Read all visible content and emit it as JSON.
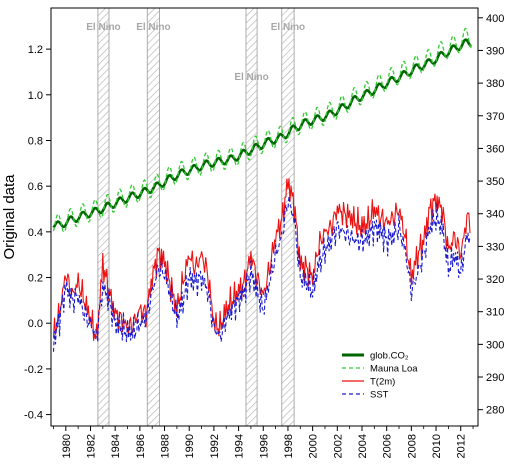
{
  "chart_data": {
    "type": "line",
    "title": "",
    "xlabel": "",
    "ylabel": "Original data",
    "xlim": [
      1978.8,
      2013.4
    ],
    "ylim": [
      -0.45,
      1.38
    ],
    "y2lim": [
      275,
      403
    ],
    "x_ticks": [
      1980,
      1982,
      1984,
      1986,
      1988,
      1990,
      1992,
      1994,
      1996,
      1998,
      2000,
      2002,
      2004,
      2006,
      2008,
      2010,
      2012
    ],
    "y_ticks": [
      -0.4,
      -0.2,
      0.0,
      0.2,
      0.4,
      0.6,
      0.8,
      1.0,
      1.2
    ],
    "y2_ticks": [
      280,
      290,
      300,
      310,
      320,
      330,
      340,
      350,
      360,
      370,
      380,
      390,
      400
    ],
    "grid": false,
    "legend_position": "bottom-right",
    "el_nino": {
      "label": "El Nino",
      "periods": [
        [
          1982.6,
          1983.5
        ],
        [
          1986.6,
          1987.6
        ],
        [
          1994.6,
          1995.5
        ],
        [
          1997.5,
          1998.5
        ]
      ]
    },
    "series": [
      {
        "name": "glob.CO₂",
        "axis": "right",
        "color": "#006400",
        "dash": "solid",
        "width": 2.6,
        "x": [
          1979.5,
          1980.5,
          1981.5,
          1982.5,
          1983.5,
          1984.5,
          1985.5,
          1986.5,
          1987.5,
          1988.5,
          1989.5,
          1990.5,
          1991.5,
          1992.5,
          1993.5,
          1994.5,
          1995.5,
          1996.5,
          1997.5,
          1998.5,
          1999.5,
          2000.5,
          2001.5,
          2002.5,
          2003.5,
          2004.5,
          2005.5,
          2006.5,
          2007.5,
          2008.5,
          2009.5,
          2010.5,
          2011.5,
          2012.5
        ],
        "values": [
          336.5,
          338.2,
          339.6,
          340.8,
          342.4,
          344.0,
          345.5,
          346.9,
          348.6,
          350.9,
          352.6,
          353.9,
          355.3,
          356.0,
          356.8,
          358.6,
          360.4,
          362.2,
          363.4,
          366.1,
          368.0,
          369.1,
          370.6,
          372.6,
          375.1,
          376.9,
          378.9,
          380.9,
          382.7,
          384.8,
          386.3,
          388.6,
          390.6,
          392.4
        ],
        "seasonal_amplitude": 1.1
      },
      {
        "name": "Mauna Loa",
        "axis": "right",
        "color": "#33cc33",
        "dash": "dash",
        "width": 1.3,
        "x": [
          1979.5,
          1980.5,
          1981.5,
          1982.5,
          1983.5,
          1984.5,
          1985.5,
          1986.5,
          1987.5,
          1988.5,
          1989.5,
          1990.5,
          1991.5,
          1992.5,
          1993.5,
          1994.5,
          1995.5,
          1996.5,
          1997.5,
          1998.5,
          1999.5,
          2000.5,
          2001.5,
          2002.5,
          2003.5,
          2004.5,
          2005.5,
          2006.5,
          2007.5,
          2008.5,
          2009.5,
          2010.5,
          2011.5,
          2012.5
        ],
        "values": [
          336.8,
          338.7,
          340.1,
          341.4,
          343.0,
          344.6,
          346.0,
          347.4,
          349.2,
          351.6,
          353.1,
          354.4,
          355.7,
          356.4,
          357.2,
          358.9,
          360.9,
          362.7,
          363.8,
          366.7,
          368.4,
          369.6,
          371.2,
          373.3,
          375.8,
          377.6,
          379.8,
          381.9,
          383.8,
          385.6,
          387.4,
          389.9,
          391.6,
          393.9
        ],
        "seasonal_amplitude": 3.1
      },
      {
        "name": "T(2m)",
        "axis": "left",
        "color": "#ee1111",
        "dash": "solid",
        "width": 1.1,
        "x": [
          1979.0,
          1979.5,
          1980.0,
          1980.5,
          1981.0,
          1981.5,
          1982.0,
          1982.5,
          1983.0,
          1983.5,
          1984.0,
          1984.5,
          1985.0,
          1985.5,
          1986.0,
          1986.5,
          1987.0,
          1987.5,
          1988.0,
          1988.5,
          1989.0,
          1989.5,
          1990.0,
          1990.5,
          1991.0,
          1991.5,
          1992.0,
          1992.5,
          1993.0,
          1993.5,
          1994.0,
          1994.5,
          1995.0,
          1995.5,
          1996.0,
          1996.5,
          1997.0,
          1997.5,
          1998.0,
          1998.5,
          1999.0,
          1999.5,
          2000.0,
          2000.5,
          2001.0,
          2001.5,
          2002.0,
          2002.5,
          2003.0,
          2003.5,
          2004.0,
          2004.5,
          2005.0,
          2005.5,
          2006.0,
          2006.5,
          2007.0,
          2007.5,
          2008.0,
          2008.5,
          2009.0,
          2009.5,
          2010.0,
          2010.5,
          2011.0,
          2011.5,
          2012.0,
          2012.5
        ],
        "values": [
          -0.05,
          0.05,
          0.22,
          0.12,
          0.18,
          0.1,
          0.02,
          -0.07,
          0.26,
          0.14,
          0.04,
          0.02,
          -0.02,
          0.0,
          0.06,
          0.04,
          0.2,
          0.31,
          0.27,
          0.16,
          0.06,
          0.18,
          0.3,
          0.24,
          0.3,
          0.22,
          0.0,
          -0.02,
          0.06,
          0.1,
          0.14,
          0.18,
          0.3,
          0.2,
          0.12,
          0.24,
          0.38,
          0.45,
          0.62,
          0.52,
          0.26,
          0.24,
          0.2,
          0.34,
          0.4,
          0.42,
          0.5,
          0.48,
          0.47,
          0.44,
          0.42,
          0.44,
          0.5,
          0.46,
          0.44,
          0.46,
          0.5,
          0.38,
          0.2,
          0.3,
          0.36,
          0.5,
          0.54,
          0.5,
          0.32,
          0.38,
          0.3,
          0.46
        ]
      },
      {
        "name": "SST",
        "axis": "left",
        "color": "#1a1acc",
        "dash": "dash",
        "width": 1.1,
        "x": [
          1979.0,
          1979.5,
          1980.0,
          1980.5,
          1981.0,
          1981.5,
          1982.0,
          1982.5,
          1983.0,
          1983.5,
          1984.0,
          1984.5,
          1985.0,
          1985.5,
          1986.0,
          1986.5,
          1987.0,
          1987.5,
          1988.0,
          1988.5,
          1989.0,
          1989.5,
          1990.0,
          1990.5,
          1991.0,
          1991.5,
          1992.0,
          1992.5,
          1993.0,
          1993.5,
          1994.0,
          1994.5,
          1995.0,
          1995.5,
          1996.0,
          1996.5,
          1997.0,
          1997.5,
          1998.0,
          1998.5,
          1999.0,
          1999.5,
          2000.0,
          2000.5,
          2001.0,
          2001.5,
          2002.0,
          2002.5,
          2003.0,
          2003.5,
          2004.0,
          2004.5,
          2005.0,
          2005.5,
          2006.0,
          2006.5,
          2007.0,
          2007.5,
          2008.0,
          2008.5,
          2009.0,
          2009.5,
          2010.0,
          2010.5,
          2011.0,
          2011.5,
          2012.0,
          2012.5
        ],
        "values": [
          -0.08,
          0.02,
          0.16,
          0.1,
          0.12,
          0.04,
          0.0,
          -0.06,
          0.16,
          0.1,
          0.0,
          -0.02,
          -0.04,
          -0.04,
          0.0,
          0.02,
          0.14,
          0.24,
          0.22,
          0.12,
          0.02,
          0.1,
          0.2,
          0.18,
          0.2,
          0.14,
          -0.02,
          -0.06,
          0.02,
          0.06,
          0.1,
          0.14,
          0.22,
          0.14,
          0.06,
          0.18,
          0.3,
          0.38,
          0.54,
          0.46,
          0.2,
          0.18,
          0.14,
          0.26,
          0.32,
          0.36,
          0.42,
          0.4,
          0.38,
          0.36,
          0.36,
          0.38,
          0.42,
          0.4,
          0.36,
          0.38,
          0.42,
          0.32,
          0.14,
          0.22,
          0.3,
          0.42,
          0.46,
          0.42,
          0.24,
          0.3,
          0.22,
          0.38
        ]
      }
    ]
  }
}
